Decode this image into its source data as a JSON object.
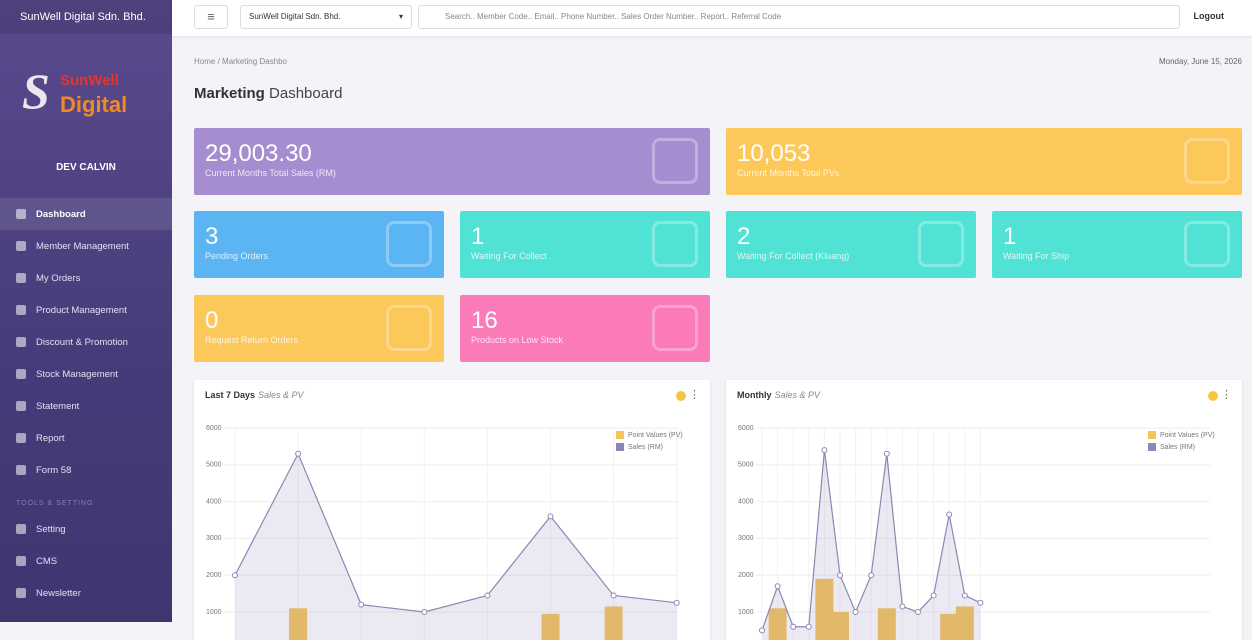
{
  "sidebar": {
    "brand": "SunWell Digital Sdn. Bhd.",
    "logo": [
      "S",
      "SunWell",
      "Digital"
    ],
    "user": "DEV CALVIN",
    "menu": [
      "Dashboard",
      "Member Management",
      "My Orders",
      "Product Management",
      "Discount & Promotion",
      "Stock Management",
      "Statement",
      "Report",
      "Form 58"
    ],
    "section": "TOOLS & SETTING",
    "tools": [
      "Setting",
      "CMS",
      "Newsletter"
    ]
  },
  "topbar": {
    "menu_icon": "≡",
    "company": "SunWell Digital Sdn. Bhd.",
    "search_placeholder": "Search.. Member Code.. Email.. Phone Number.. Sales Order Number.. Report.. Referral Code",
    "logout": "Logout"
  },
  "breadcrumb": [
    "Home",
    "/",
    "Marketing Dashbo"
  ],
  "date": "Monday, June 15, 2026",
  "page_title": [
    "Marketing",
    "Dashboard"
  ],
  "cards": [
    {
      "value": "29,003.30",
      "label": "Current Months Total Sales (RM)"
    },
    {
      "value": "10,053",
      "label": "Current Months Total PVs"
    },
    {
      "value": "3",
      "label": "Pending Orders"
    },
    {
      "value": "1",
      "label": "Waiting For Collect"
    },
    {
      "value": "2",
      "label": "Waiting For Collect (Kluang)"
    },
    {
      "value": "1",
      "label": "Waiting For Ship"
    },
    {
      "value": "0",
      "label": "Request Return Orders"
    },
    {
      "value": "16",
      "label": "Products on Low Stock"
    }
  ],
  "chart_data": [
    {
      "type": "combo",
      "title": "Last 7 Days",
      "subtitle": "Sales & PV",
      "categories": [
        null,
        null,
        null,
        null,
        null,
        null,
        null,
        null
      ],
      "series": [
        {
          "name": "Point Values (PV)",
          "type": "bar",
          "color": "#f5c55a",
          "values": [
            0,
            1100,
            0,
            0,
            0,
            950,
            1150,
            0
          ]
        },
        {
          "name": "Sales (RM)",
          "type": "line",
          "color": "#8e86b5",
          "values": [
            2000,
            5300,
            1200,
            1000,
            1450,
            3600,
            1450,
            1250
          ]
        }
      ],
      "ylim": [
        0,
        6000
      ],
      "yticks": [
        1000,
        2000,
        3000,
        4000,
        5000,
        6000
      ],
      "grid": true
    },
    {
      "type": "combo",
      "title": "Monthly",
      "subtitle": "Sales & PV",
      "categories": [
        null,
        null,
        null,
        null,
        null,
        null,
        null,
        null,
        null,
        null,
        null,
        null,
        null,
        null,
        null
      ],
      "series": [
        {
          "name": "Point Values (PV)",
          "type": "bar",
          "color": "#f5c55a",
          "values": [
            0,
            1100,
            0,
            0,
            1900,
            1000,
            0,
            0,
            1100,
            0,
            0,
            0,
            950,
            1150,
            0
          ]
        },
        {
          "name": "Sales (RM)",
          "type": "line",
          "color": "#8e86b5",
          "values": [
            500,
            1700,
            600,
            600,
            5400,
            2000,
            1000,
            2000,
            5300,
            1150,
            1000,
            1450,
            3650,
            1450,
            1250
          ]
        }
      ],
      "ylim": [
        0,
        6000
      ],
      "yticks": [
        1000,
        2000,
        3000,
        4000,
        5000,
        6000
      ],
      "grid": true
    }
  ]
}
